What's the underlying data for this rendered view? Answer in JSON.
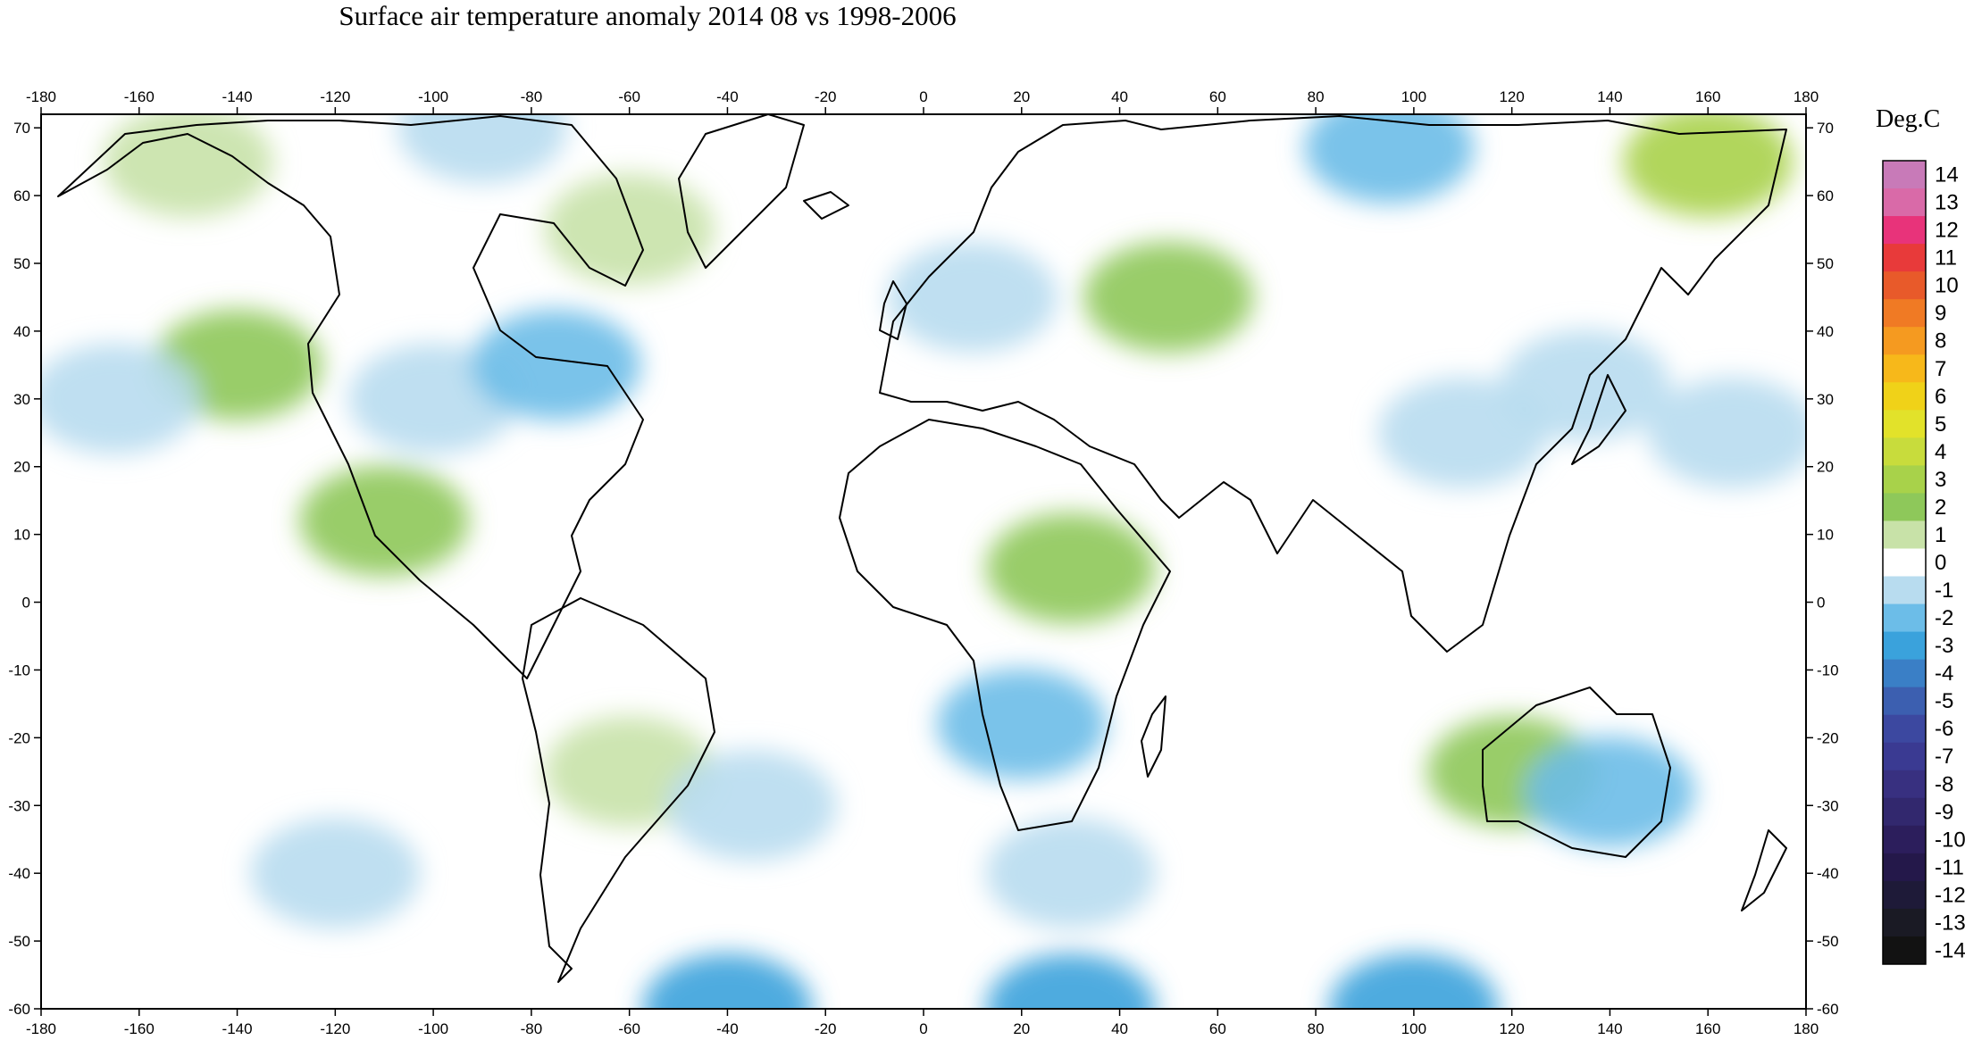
{
  "title": "Surface air temperature anomaly 2014 08 vs 1998-2006",
  "chart_data": {
    "type": "heatmap",
    "title": "Surface air temperature anomaly 2014 08 vs 1998-2006",
    "x_ticks": [
      -180,
      -160,
      -140,
      -120,
      -100,
      -80,
      -60,
      -40,
      -20,
      0,
      20,
      40,
      60,
      80,
      100,
      120,
      140,
      160,
      180
    ],
    "y_ticks": [
      70,
      60,
      50,
      40,
      30,
      20,
      10,
      0,
      -10,
      -20,
      -30,
      -40,
      -50,
      -60
    ],
    "xlim": [
      -180,
      180
    ],
    "ylim": [
      -60,
      72
    ],
    "colorbar": {
      "unit": "Deg.C",
      "levels": [
        14,
        13,
        12,
        11,
        10,
        9,
        8,
        7,
        6,
        5,
        4,
        3,
        2,
        1,
        0,
        -1,
        -2,
        -3,
        -4,
        -5,
        -6,
        -7,
        -8,
        -9,
        -10,
        -11,
        -12,
        -13,
        -14
      ],
      "colors": [
        "#c87ab8",
        "#d96aa8",
        "#e8337a",
        "#e83a3a",
        "#e85a2a",
        "#f07a24",
        "#f59a20",
        "#f7b81a",
        "#f0d218",
        "#e2e22a",
        "#c8dc3c",
        "#a8d24a",
        "#8ec85a",
        "#c8e2a8",
        "#ffffff",
        "#b8dcef",
        "#6cbde8",
        "#3aa2dc",
        "#3a7fc6",
        "#3c5fb0",
        "#3c48a0",
        "#3a3a92",
        "#383080",
        "#32286e",
        "#2c1e5c",
        "#24184a",
        "#1e1a38",
        "#1a1a24",
        "#121212"
      ]
    },
    "anomaly_regions": [
      {
        "lon": -150,
        "lat": 65,
        "value": 1.3
      },
      {
        "lon": -140,
        "lat": 35,
        "value": 1.6
      },
      {
        "lon": -165,
        "lat": 30,
        "value": -1.5
      },
      {
        "lon": -110,
        "lat": 12,
        "value": 1.8
      },
      {
        "lon": -100,
        "lat": 30,
        "value": -1.2
      },
      {
        "lon": -75,
        "lat": 35,
        "value": -1.6
      },
      {
        "lon": -90,
        "lat": 70,
        "value": -1.3
      },
      {
        "lon": -60,
        "lat": 55,
        "value": 1.2
      },
      {
        "lon": 10,
        "lat": 45,
        "value": -1.5
      },
      {
        "lon": 50,
        "lat": 45,
        "value": 2.0
      },
      {
        "lon": 95,
        "lat": 67,
        "value": -1.8
      },
      {
        "lon": 160,
        "lat": 65,
        "value": 2.5
      },
      {
        "lon": 110,
        "lat": 25,
        "value": -1.2
      },
      {
        "lon": 135,
        "lat": 32,
        "value": -1.5
      },
      {
        "lon": 165,
        "lat": 25,
        "value": -1.4
      },
      {
        "lon": 30,
        "lat": 5,
        "value": 1.8
      },
      {
        "lon": -60,
        "lat": -25,
        "value": 1.4
      },
      {
        "lon": -35,
        "lat": -30,
        "value": -1.2
      },
      {
        "lon": 20,
        "lat": -18,
        "value": -1.6
      },
      {
        "lon": 120,
        "lat": -25,
        "value": 1.8
      },
      {
        "lon": 140,
        "lat": -28,
        "value": -1.6
      },
      {
        "lon": -40,
        "lat": -60,
        "value": -3.5
      },
      {
        "lon": 30,
        "lat": -60,
        "value": -3.4
      },
      {
        "lon": 100,
        "lat": -60,
        "value": -3.2
      },
      {
        "lon": 30,
        "lat": -40,
        "value": -1.5
      },
      {
        "lon": -120,
        "lat": -40,
        "value": -0.9
      }
    ]
  }
}
